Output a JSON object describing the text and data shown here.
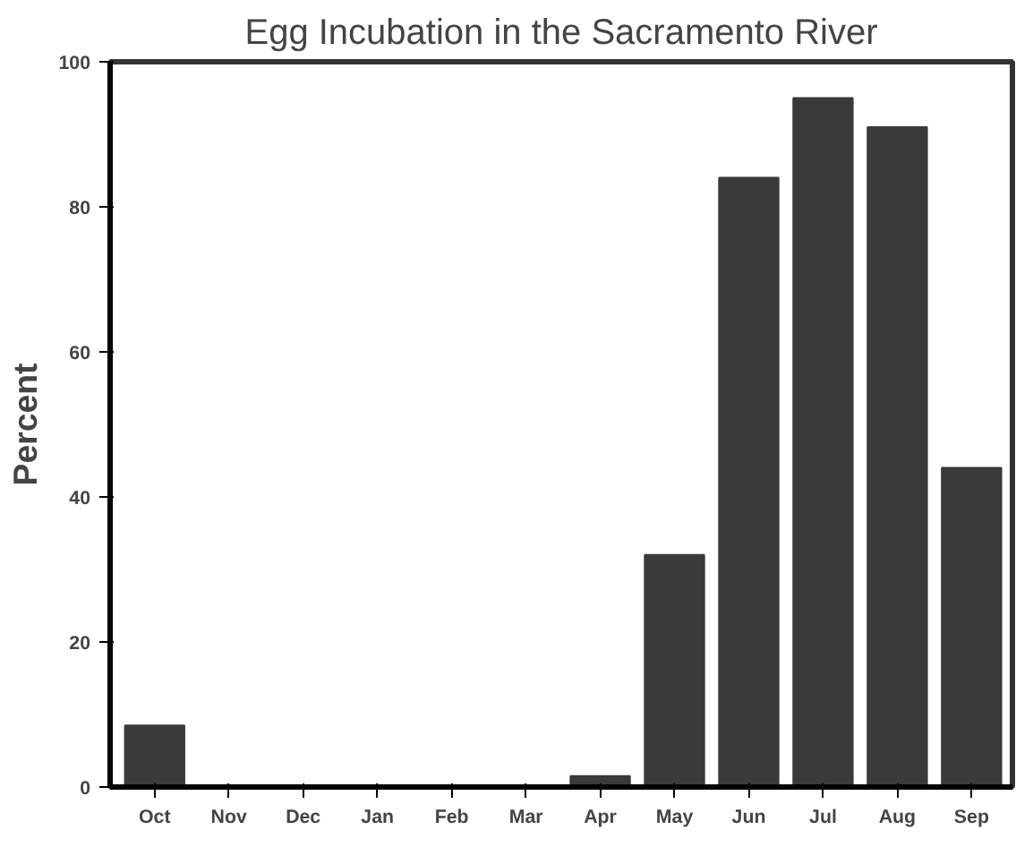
{
  "chart_data": {
    "type": "bar",
    "title": "Egg Incubation in the Sacramento River",
    "ylabel": "Percent",
    "categories": [
      "Oct",
      "Nov",
      "Dec",
      "Jan",
      "Feb",
      "Mar",
      "Apr",
      "May",
      "Jun",
      "Jul",
      "Aug",
      "Sep"
    ],
    "values": [
      8.5,
      0,
      0,
      0,
      0,
      0,
      1.5,
      32,
      84,
      95,
      91,
      44
    ],
    "color": "#3a3a3a",
    "ylim": [
      0,
      100
    ],
    "yticks": [
      0,
      20,
      40,
      60,
      80,
      100
    ],
    "grid": false
  }
}
